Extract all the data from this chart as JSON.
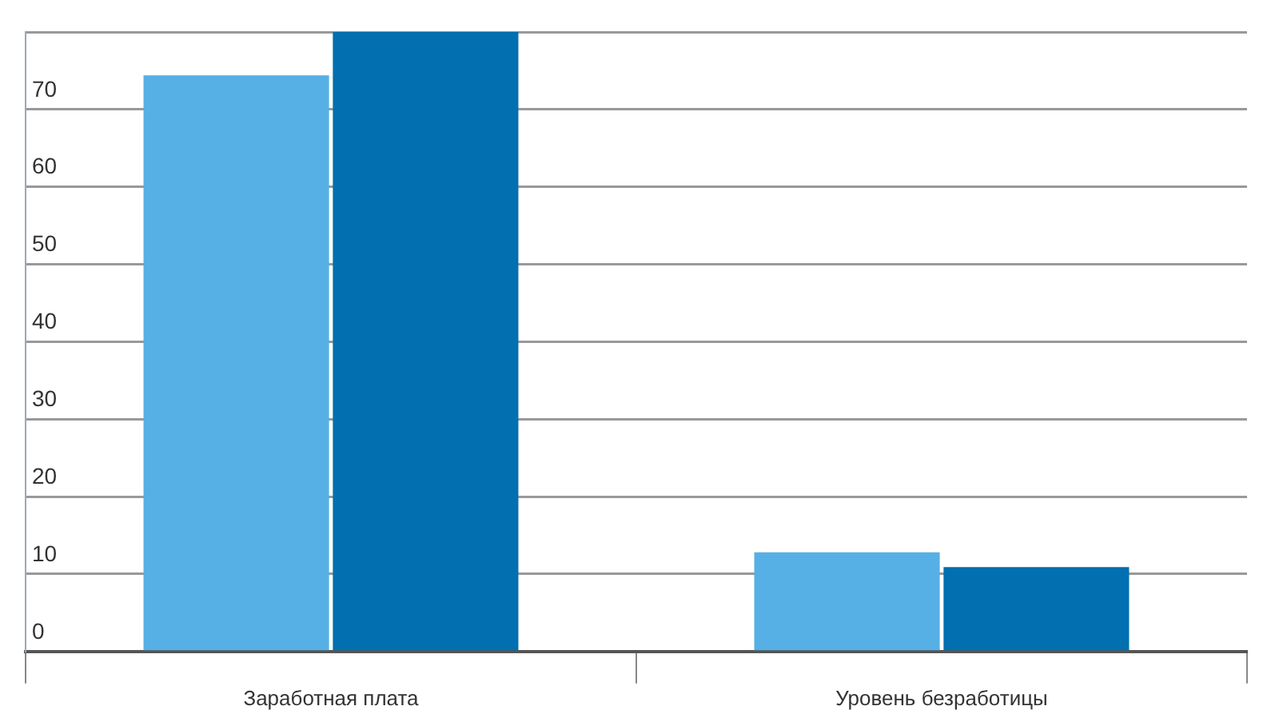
{
  "chart_data": {
    "type": "bar",
    "categories": [
      "Заработная плата",
      "Уровень безработицы"
    ],
    "series": [
      {
        "color": "#56b0e6",
        "values": [
          74.4,
          12.8
        ]
      },
      {
        "color": "#0270b0",
        "values": [
          80,
          10.9
        ]
      }
    ],
    "ylim": [
      0,
      80
    ],
    "yticks": [
      0,
      10,
      20,
      30,
      40,
      50,
      60,
      70,
      {
        "value": 80,
        "label": null
      }
    ],
    "grid": "y",
    "legend": false
  }
}
